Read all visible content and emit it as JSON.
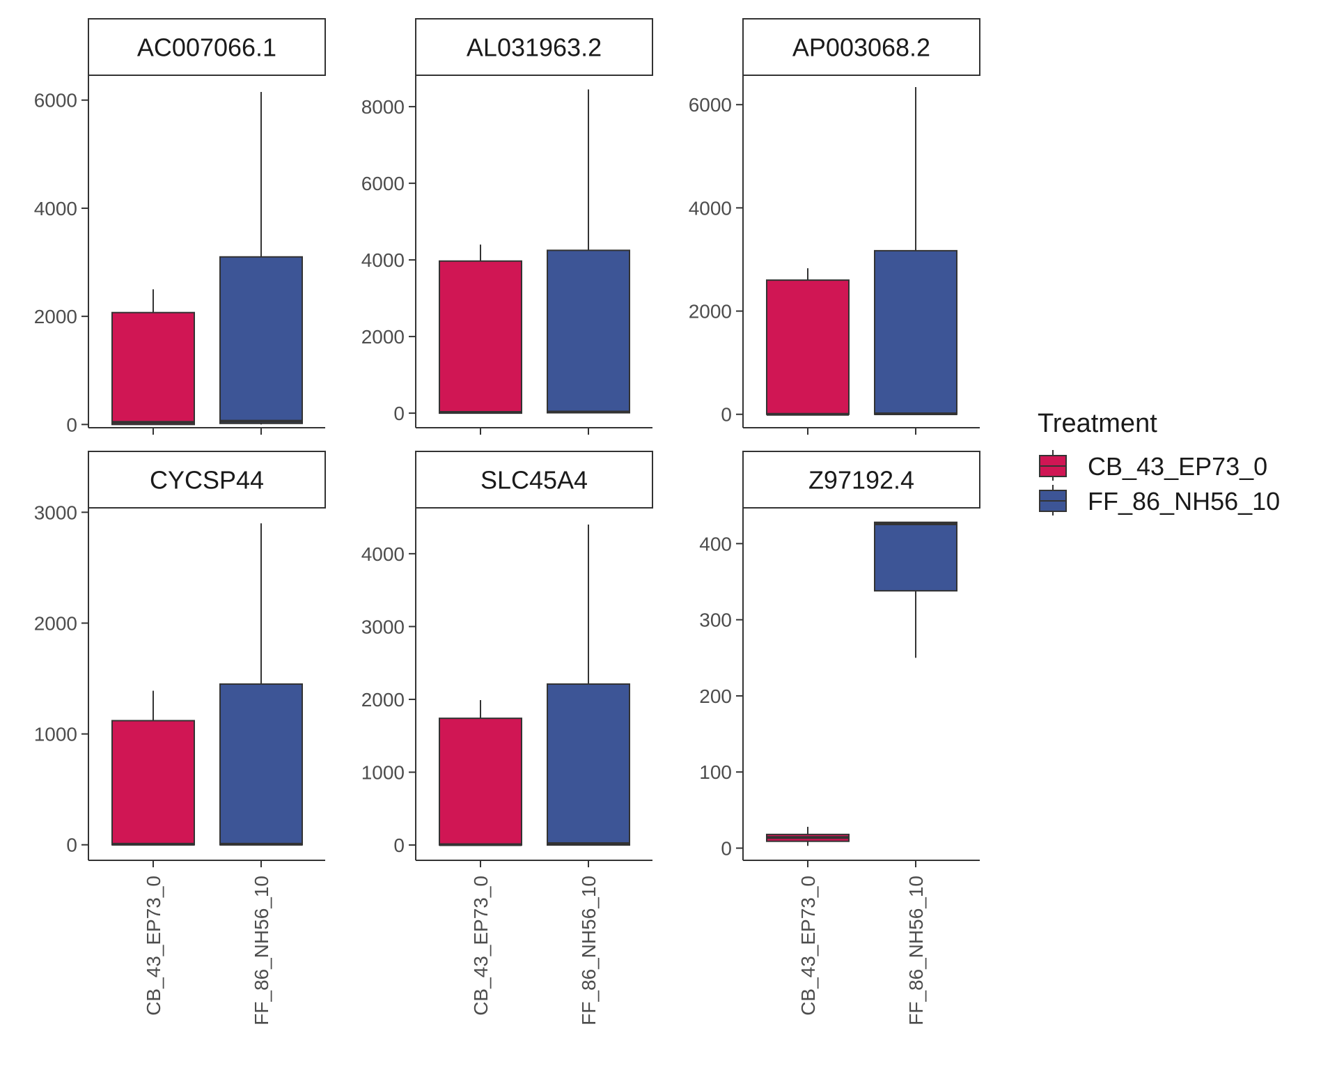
{
  "chart_data": {
    "type": "boxplot",
    "facet_by": "gene",
    "categories": [
      "CB_43_EP73_0",
      "FF_86_NH56_10"
    ],
    "legend": {
      "title": "Treatment",
      "position": "right",
      "items": [
        {
          "label": "CB_43_EP73_0",
          "color": "#D01654"
        },
        {
          "label": "FF_86_NH56_10",
          "color": "#3D5596"
        }
      ]
    },
    "grid": false,
    "panels": [
      {
        "title": "AC007066.1",
        "ylim": [
          -60,
          6460
        ],
        "yticks": [
          0,
          2000,
          4000,
          6000
        ],
        "boxes": [
          {
            "category": "CB_43_EP73_0",
            "lower_whisker": 0,
            "q1": 0,
            "median": 40,
            "q3": 2070,
            "upper_whisker": 2500
          },
          {
            "category": "FF_86_NH56_10",
            "lower_whisker": 0,
            "q1": 20,
            "median": 60,
            "q3": 3100,
            "upper_whisker": 6150
          }
        ]
      },
      {
        "title": "AL031963.2",
        "ylim": [
          -380,
          8820
        ],
        "yticks": [
          0,
          2000,
          4000,
          6000,
          8000
        ],
        "boxes": [
          {
            "category": "CB_43_EP73_0",
            "lower_whisker": 0,
            "q1": 0,
            "median": 20,
            "q3": 3970,
            "upper_whisker": 4400
          },
          {
            "category": "FF_86_NH56_10",
            "lower_whisker": 0,
            "q1": 10,
            "median": 30,
            "q3": 4250,
            "upper_whisker": 8450
          }
        ]
      },
      {
        "title": "AP003068.2",
        "ylim": [
          -260,
          6570
        ],
        "yticks": [
          0,
          2000,
          4000,
          6000
        ],
        "boxes": [
          {
            "category": "CB_43_EP73_0",
            "lower_whisker": 0,
            "q1": 0,
            "median": 0,
            "q3": 2600,
            "upper_whisker": 2830
          },
          {
            "category": "FF_86_NH56_10",
            "lower_whisker": 0,
            "q1": 0,
            "median": 10,
            "q3": 3170,
            "upper_whisker": 6340
          }
        ]
      },
      {
        "title": "CYCSP44",
        "ylim": [
          -140,
          3040
        ],
        "yticks": [
          0,
          1000,
          2000,
          3000
        ],
        "boxes": [
          {
            "category": "CB_43_EP73_0",
            "lower_whisker": 0,
            "q1": 0,
            "median": 5,
            "q3": 1120,
            "upper_whisker": 1390
          },
          {
            "category": "FF_86_NH56_10",
            "lower_whisker": 0,
            "q1": 0,
            "median": 5,
            "q3": 1450,
            "upper_whisker": 2900
          }
        ]
      },
      {
        "title": "SLC45A4",
        "ylim": [
          -210,
          4630
        ],
        "yticks": [
          0,
          1000,
          2000,
          3000,
          4000
        ],
        "boxes": [
          {
            "category": "CB_43_EP73_0",
            "lower_whisker": 0,
            "q1": 0,
            "median": 5,
            "q3": 1740,
            "upper_whisker": 1990
          },
          {
            "category": "FF_86_NH56_10",
            "lower_whisker": 0,
            "q1": 0,
            "median": 20,
            "q3": 2210,
            "upper_whisker": 4400
          }
        ]
      },
      {
        "title": "Z97192.4",
        "ylim": [
          -16,
          447
        ],
        "yticks": [
          0,
          100,
          200,
          300,
          400
        ],
        "boxes": [
          {
            "category": "CB_43_EP73_0",
            "lower_whisker": 3,
            "q1": 9,
            "median": 14,
            "q3": 18,
            "upper_whisker": 28
          },
          {
            "category": "FF_86_NH56_10",
            "lower_whisker": 250,
            "q1": 338,
            "median": 426,
            "q3": 428,
            "upper_whisker": 428
          }
        ]
      }
    ]
  }
}
